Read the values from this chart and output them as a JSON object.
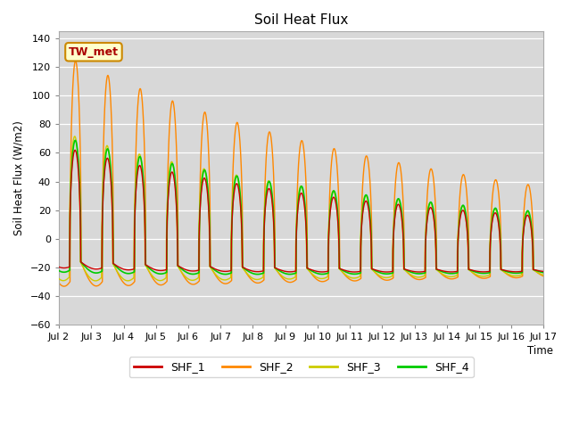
{
  "title": "Soil Heat Flux",
  "ylabel": "Soil Heat Flux (W/m2)",
  "xlabel": "Time",
  "annotation": "TW_met",
  "ylim": [
    -60,
    145
  ],
  "yticks": [
    -60,
    -40,
    -20,
    0,
    20,
    40,
    60,
    80,
    100,
    120,
    140
  ],
  "colors": {
    "SHF_1": "#cc0000",
    "SHF_2": "#ff8800",
    "SHF_3": "#cccc00",
    "SHF_4": "#00cc00"
  },
  "background_color": "#d8d8d8",
  "x_tick_labels": [
    "Jul 2",
    "Jul 3",
    "Jul 4",
    "Jul 5",
    "Jul 6",
    "Jul 7",
    "Jul 8",
    "Jul 9",
    "Jul 10",
    "Jul 11",
    "Jul 12",
    "Jul 13",
    "Jul 14",
    "Jul 15",
    "Jul 16",
    "Jul 17"
  ],
  "x_tick_positions": [
    2,
    3,
    4,
    5,
    6,
    7,
    8,
    9,
    10,
    11,
    12,
    13,
    14,
    15,
    16,
    17
  ]
}
